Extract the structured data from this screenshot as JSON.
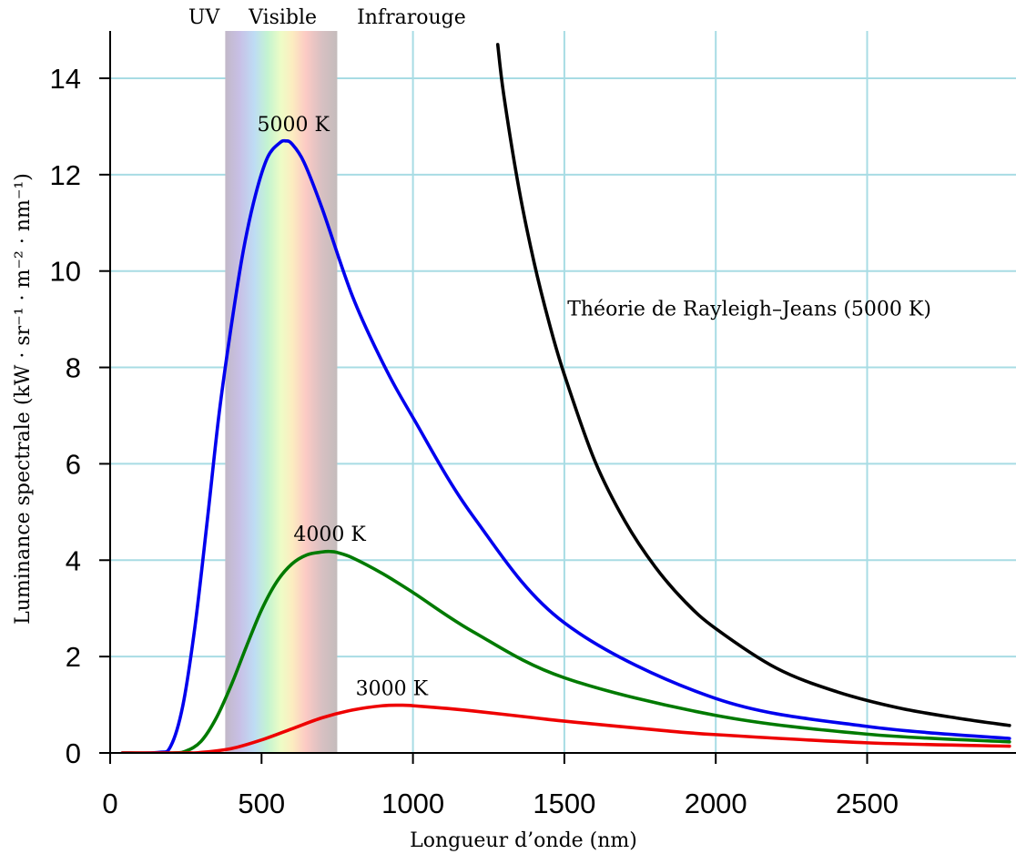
{
  "chart_data": {
    "type": "line",
    "xlabel": "Longueur d’onde (nm)",
    "ylabel": "Luminance spectrale (kW · sr⁻¹ · m⁻² · nm⁻¹)",
    "xlim": [
      -30,
      2970
    ],
    "ylim": [
      0,
      15
    ],
    "x_ticks": [
      "0",
      "500",
      "1000",
      "1500",
      "2000",
      "2500"
    ],
    "y_ticks": [
      "0",
      "2",
      "4",
      "6",
      "8",
      "10",
      "12",
      "14"
    ],
    "grid": true,
    "bands": [
      {
        "label": "UV",
        "x_end": 380
      },
      {
        "label": "Visible",
        "x_start": 380,
        "x_end": 750
      },
      {
        "label": "Infrarouge",
        "x_start": 750
      }
    ],
    "series": [
      {
        "name": "5000 K",
        "color": "#0000ee",
        "x": [
          160,
          200,
          240,
          280,
          320,
          360,
          400,
          440,
          480,
          520,
          560,
          580,
          600,
          640,
          700,
          800,
          900,
          1000,
          1200,
          1500,
          2000,
          2500,
          2970
        ],
        "y": [
          0.01,
          0.14,
          0.98,
          2.62,
          4.78,
          7.05,
          8.86,
          10.43,
          11.58,
          12.36,
          12.66,
          12.7,
          12.64,
          12.26,
          11.3,
          9.48,
          8.1,
          6.96,
          4.9,
          2.7,
          1.13,
          0.55,
          0.3
        ]
      },
      {
        "name": "4000 K",
        "color": "#007a00",
        "x": [
          200,
          250,
          300,
          350,
          400,
          450,
          500,
          550,
          600,
          650,
          700,
          725,
          750,
          800,
          900,
          1000,
          1200,
          1500,
          2000,
          2500,
          2970
        ],
        "y": [
          0.0,
          0.04,
          0.24,
          0.72,
          1.41,
          2.21,
          2.97,
          3.55,
          3.92,
          4.11,
          4.17,
          4.18,
          4.16,
          4.05,
          3.72,
          3.33,
          2.51,
          1.56,
          0.78,
          0.39,
          0.23
        ]
      },
      {
        "name": "3000 K",
        "color": "#ee0000",
        "x": [
          250,
          300,
          400,
          500,
          600,
          700,
          800,
          900,
          966,
          1000,
          1100,
          1200,
          1400,
          1500,
          1800,
          2000,
          2500,
          2970
        ],
        "y": [
          0.0,
          0.01,
          0.09,
          0.27,
          0.5,
          0.73,
          0.89,
          0.98,
          0.99,
          0.98,
          0.93,
          0.87,
          0.73,
          0.66,
          0.48,
          0.38,
          0.21,
          0.14
        ]
      },
      {
        "name": "Théorie de Rayleigh–Jeans (5000 K)",
        "color": "#000000",
        "x": [
          1280,
          1300,
          1350,
          1400,
          1450,
          1500,
          1600,
          1700,
          1800,
          1900,
          2000,
          2200,
          2400,
          2600,
          2800,
          2970
        ],
        "y": [
          14.7,
          13.65,
          11.71,
          10.18,
          8.92,
          7.85,
          6.07,
          4.81,
          3.86,
          3.13,
          2.58,
          1.76,
          1.27,
          0.94,
          0.72,
          0.57
        ]
      }
    ],
    "annotations": [
      {
        "text": "5000 K",
        "x": 605,
        "y": 12.9
      },
      {
        "text": "4000 K",
        "x": 725,
        "y": 4.4
      },
      {
        "text": "3000 K",
        "x": 930,
        "y": 1.2
      },
      {
        "text": "Théorie de Rayleigh–Jeans (5000 K)",
        "x": 1510,
        "y": 9.08
      }
    ]
  }
}
